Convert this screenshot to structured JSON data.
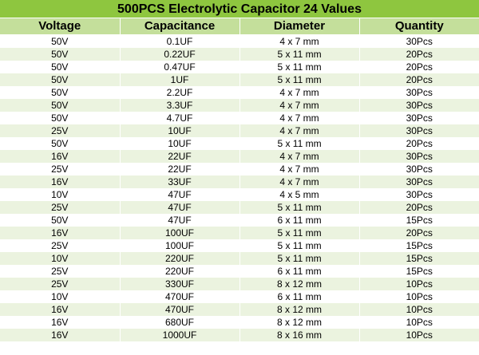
{
  "title": "500PCS Electrolytic Capacitor 24 Values",
  "colors": {
    "title_bg": "#8ec63f",
    "header_bg": "#c4df9b",
    "row_alt_bg": "#ebf3df",
    "row_bg": "#ffffff"
  },
  "table": {
    "headers": [
      "Voltage",
      "Capacitance",
      "Diameter",
      "Quantity"
    ],
    "rows": [
      [
        "50V",
        "0.1UF",
        "4 x 7 mm",
        "30Pcs"
      ],
      [
        "50V",
        "0.22UF",
        "5 x 11 mm",
        "20Pcs"
      ],
      [
        "50V",
        "0.47UF",
        "5 x 11 mm",
        "20Pcs"
      ],
      [
        "50V",
        "1UF",
        "5 x 11 mm",
        "20Pcs"
      ],
      [
        "50V",
        "2.2UF",
        "4 x 7 mm",
        "30Pcs"
      ],
      [
        "50V",
        "3.3UF",
        "4 x 7 mm",
        "30Pcs"
      ],
      [
        "50V",
        "4.7UF",
        "4 x 7 mm",
        "30Pcs"
      ],
      [
        "25V",
        "10UF",
        "4 x 7 mm",
        "30Pcs"
      ],
      [
        "50V",
        "10UF",
        "5 x 11 mm",
        "20Pcs"
      ],
      [
        "16V",
        "22UF",
        "4 x 7 mm",
        "30Pcs"
      ],
      [
        "25V",
        "22UF",
        "4 x 7 mm",
        "30Pcs"
      ],
      [
        "16V",
        "33UF",
        "4 x 7 mm",
        "30Pcs"
      ],
      [
        "10V",
        "47UF",
        "4 x 5 mm",
        "30Pcs"
      ],
      [
        "25V",
        "47UF",
        "5 x 11 mm",
        "20Pcs"
      ],
      [
        "50V",
        "47UF",
        "6 x 11 mm",
        "15Pcs"
      ],
      [
        "16V",
        "100UF",
        "5 x 11 mm",
        "20Pcs"
      ],
      [
        "25V",
        "100UF",
        "5 x 11 mm",
        "15Pcs"
      ],
      [
        "10V",
        "220UF",
        "5 x 11 mm",
        "15Pcs"
      ],
      [
        "25V",
        "220UF",
        "6 x 11 mm",
        "15Pcs"
      ],
      [
        "25V",
        "330UF",
        "8 x 12 mm",
        "10Pcs"
      ],
      [
        "10V",
        "470UF",
        "6 x 11 mm",
        "10Pcs"
      ],
      [
        "16V",
        "470UF",
        "8 x 12 mm",
        "10Pcs"
      ],
      [
        "16V",
        "680UF",
        "8 x 12 mm",
        "10Pcs"
      ],
      [
        "16V",
        "1000UF",
        "8 x 16 mm",
        "10Pcs"
      ]
    ]
  }
}
